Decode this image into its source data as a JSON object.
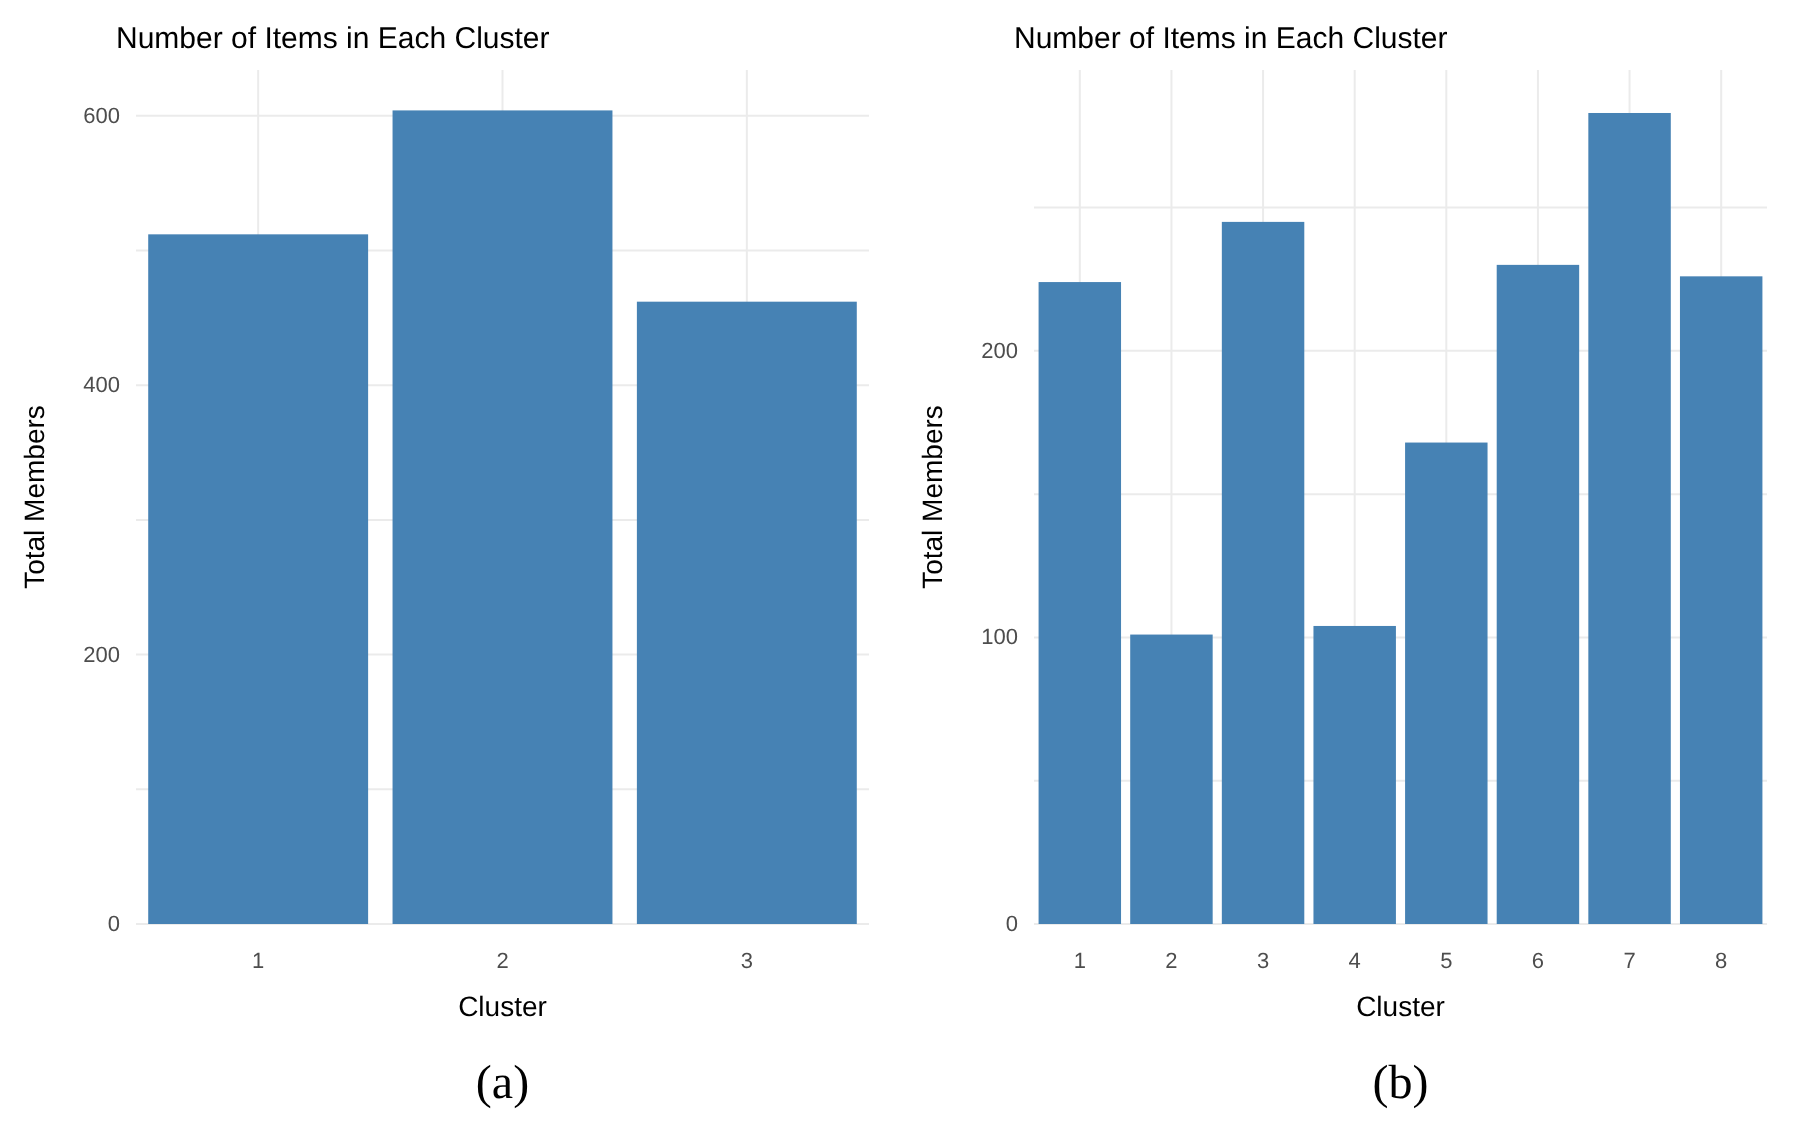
{
  "chart_data": [
    {
      "type": "bar",
      "title": "Number of Items in Each Cluster",
      "xlabel": "Cluster",
      "ylabel": "Total Members",
      "categories": [
        "1",
        "2",
        "3"
      ],
      "values": [
        512,
        604,
        462
      ],
      "color": "#4682b4",
      "ylim": [
        0,
        634
      ],
      "yticks": [
        0,
        {
          "value": 100,
          "label": null
        },
        200,
        {
          "value": 300,
          "label": null
        },
        400,
        {
          "value": 500,
          "label": null
        },
        600
      ],
      "grid": true,
      "annotations": [
        "(a)"
      ]
    },
    {
      "type": "bar",
      "title": "Number of Items in Each Cluster",
      "xlabel": "Cluster",
      "ylabel": "Total Members",
      "categories": [
        "1",
        "2",
        "3",
        "4",
        "5",
        "6",
        "7",
        "8"
      ],
      "values": [
        224,
        101,
        245,
        104,
        168,
        230,
        283,
        226
      ],
      "color": "#4682b4",
      "ylim": [
        0,
        298
      ],
      "yticks": [
        0,
        {
          "value": 50,
          "label": null
        },
        100,
        {
          "value": 150,
          "label": null
        },
        200,
        {
          "value": 250,
          "label": null
        }
      ],
      "grid": true,
      "annotations": [
        "(b)"
      ]
    }
  ]
}
